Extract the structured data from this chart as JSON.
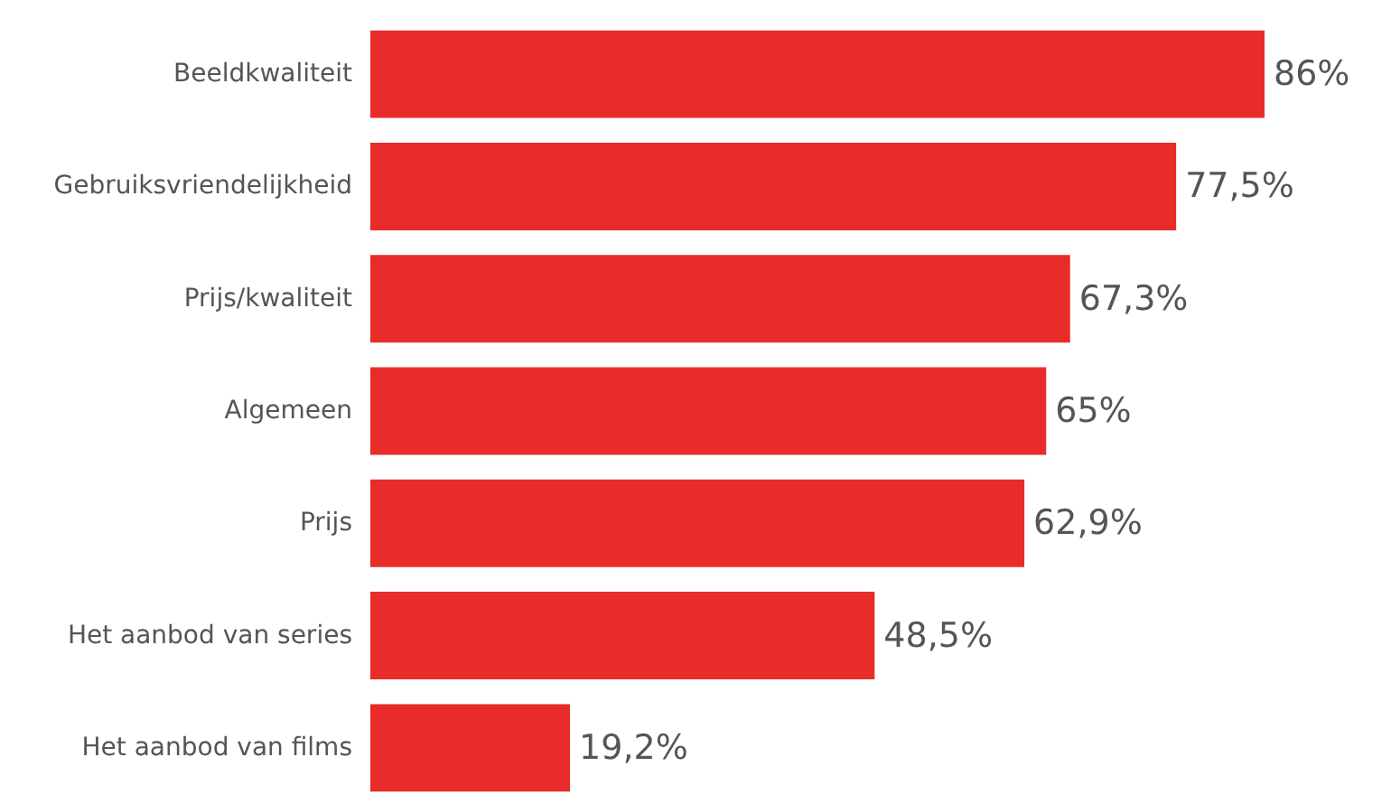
{
  "chart_data": {
    "type": "bar",
    "orientation": "horizontal",
    "categories": [
      "Beeldkwaliteit",
      "Gebruiksvriendelijkheid",
      "Prijs/kwaliteit",
      "Algemeen",
      "Prijs",
      "Het aanbod van series",
      "Het aanbod van films"
    ],
    "values": [
      86,
      77.5,
      67.3,
      65,
      62.9,
      48.5,
      19.2
    ],
    "value_labels": [
      "86%",
      "77,5%",
      "67,3%",
      "65%",
      "62,9%",
      "48,5%",
      "19,2%"
    ],
    "color": "#e82c2a"
  }
}
